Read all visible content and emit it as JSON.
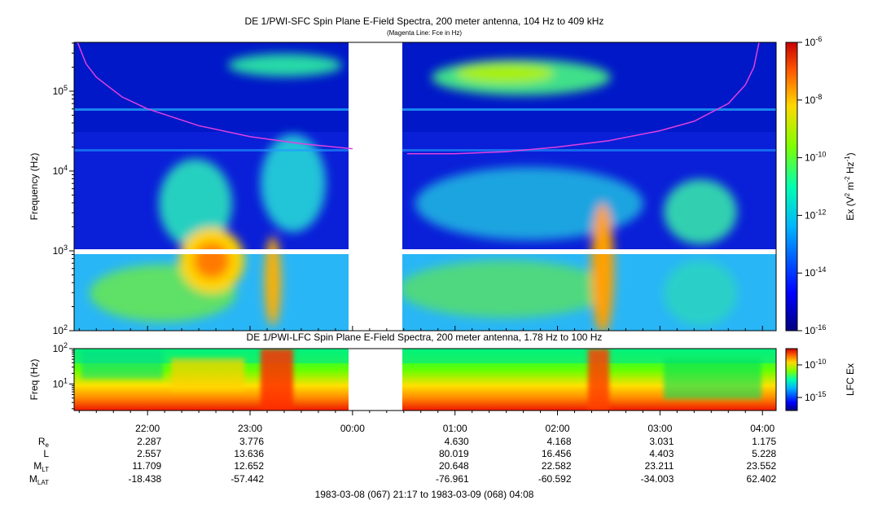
{
  "chart_data": [
    {
      "type": "heatmap",
      "title": "DE 1/PWI-SFC  Spin Plane E-Field Spectra, 200 meter antenna, 104 Hz to 409 kHz",
      "subtitle": "(Magenta Line: Fce in Hz)",
      "ylabel": "Frequency (Hz)",
      "y_scale": "log",
      "ylim": [
        100,
        409000
      ],
      "y_ticks": [
        {
          "value": 100,
          "base": "10",
          "exp": "2"
        },
        {
          "value": 1000,
          "base": "10",
          "exp": "3"
        },
        {
          "value": 10000,
          "base": "10",
          "exp": "4"
        },
        {
          "value": 100000,
          "base": "10",
          "exp": "5"
        }
      ],
      "colorbar": {
        "label_prefix": "Ex (V",
        "label_mid": " m",
        "label_mid2": " Hz",
        "label_end": ")",
        "label_sup1": "2",
        "label_sup2": "-2",
        "label_sup3": "-1",
        "scale": "log",
        "range": [
          1e-16,
          1e-06
        ],
        "ticks": [
          {
            "value": 1e-06,
            "base": "10",
            "exp": "-6"
          },
          {
            "value": 1e-08,
            "base": "10",
            "exp": "-8"
          },
          {
            "value": 1e-10,
            "base": "10",
            "exp": "-10"
          },
          {
            "value": 1e-12,
            "base": "10",
            "exp": "-12"
          },
          {
            "value": 1e-14,
            "base": "10",
            "exp": "-14"
          },
          {
            "value": 1e-16,
            "base": "10",
            "exp": "-16"
          }
        ]
      },
      "data_gap": [
        "00:00",
        "00:32"
      ],
      "fce_line_color": "#e040e0",
      "fce_line": [
        {
          "t": "21:19",
          "f": 409000
        },
        {
          "t": "21:24",
          "f": 220000
        },
        {
          "t": "21:30",
          "f": 150000
        },
        {
          "t": "21:45",
          "f": 85000
        },
        {
          "t": "22:00",
          "f": 60000
        },
        {
          "t": "22:30",
          "f": 37000
        },
        {
          "t": "23:00",
          "f": 27000
        },
        {
          "t": "23:30",
          "f": 22000
        },
        {
          "t": "00:00",
          "f": 19000
        },
        {
          "t": "00:32",
          "f": 16500
        },
        {
          "t": "01:00",
          "f": 16500
        },
        {
          "t": "01:30",
          "f": 17500
        },
        {
          "t": "02:00",
          "f": 20000
        },
        {
          "t": "02:30",
          "f": 24000
        },
        {
          "t": "03:00",
          "f": 32000
        },
        {
          "t": "03:20",
          "f": 42000
        },
        {
          "t": "03:40",
          "f": 70000
        },
        {
          "t": "03:50",
          "f": 120000
        },
        {
          "t": "03:55",
          "f": 200000
        },
        {
          "t": "03:58",
          "f": 409000
        }
      ]
    },
    {
      "type": "heatmap",
      "title": "DE 1/PWI-LFC  Spin Plane E-Field Spectra, 200 meter antenna, 1.78 Hz to 100 Hz",
      "ylabel": "Freq (Hz)",
      "y_scale": "log",
      "ylim": [
        1.78,
        100
      ],
      "y_ticks": [
        {
          "value": 10,
          "base": "10",
          "exp": "1"
        },
        {
          "value": 100,
          "base": "10",
          "exp": "2"
        }
      ],
      "colorbar": {
        "label": "LFC Ex",
        "scale": "log",
        "ticks": [
          {
            "value": 1e-10,
            "base": "10",
            "exp": "-10"
          },
          {
            "value": 1e-15,
            "base": "10",
            "exp": "-15"
          }
        ]
      },
      "data_gap": [
        "00:00",
        "00:32"
      ]
    }
  ],
  "time_axis": {
    "start": "21:17",
    "end": "04:08",
    "ticks": [
      "22:00",
      "23:00",
      "00:00",
      "01:00",
      "02:00",
      "03:00",
      "04:00"
    ]
  },
  "ephemeris": {
    "labels": [
      {
        "main": "R",
        "sub": "e"
      },
      {
        "main": "L",
        "sub": ""
      },
      {
        "main": "M",
        "sub": "LT"
      },
      {
        "main": "M",
        "sub": "LAT"
      }
    ],
    "columns": [
      {
        "time": "22:00",
        "values": [
          "2.287",
          "2.557",
          "11.709",
          "-18.438"
        ]
      },
      {
        "time": "23:00",
        "values": [
          "3.776",
          "13.636",
          "12.652",
          "-57.442"
        ]
      },
      {
        "time": "01:00",
        "values": [
          "4.630",
          "80.019",
          "20.648",
          "-76.961"
        ]
      },
      {
        "time": "02:00",
        "values": [
          "4.168",
          "16.456",
          "22.582",
          "-60.592"
        ]
      },
      {
        "time": "03:00",
        "values": [
          "3.031",
          "4.403",
          "23.211",
          "-34.003"
        ]
      },
      {
        "time": "04:00",
        "values": [
          "1.175",
          "5.228",
          "23.552",
          "62.402"
        ]
      }
    ]
  },
  "footer": "1983-03-08 (067) 21:17 to 1983-03-09 (068) 04:08"
}
